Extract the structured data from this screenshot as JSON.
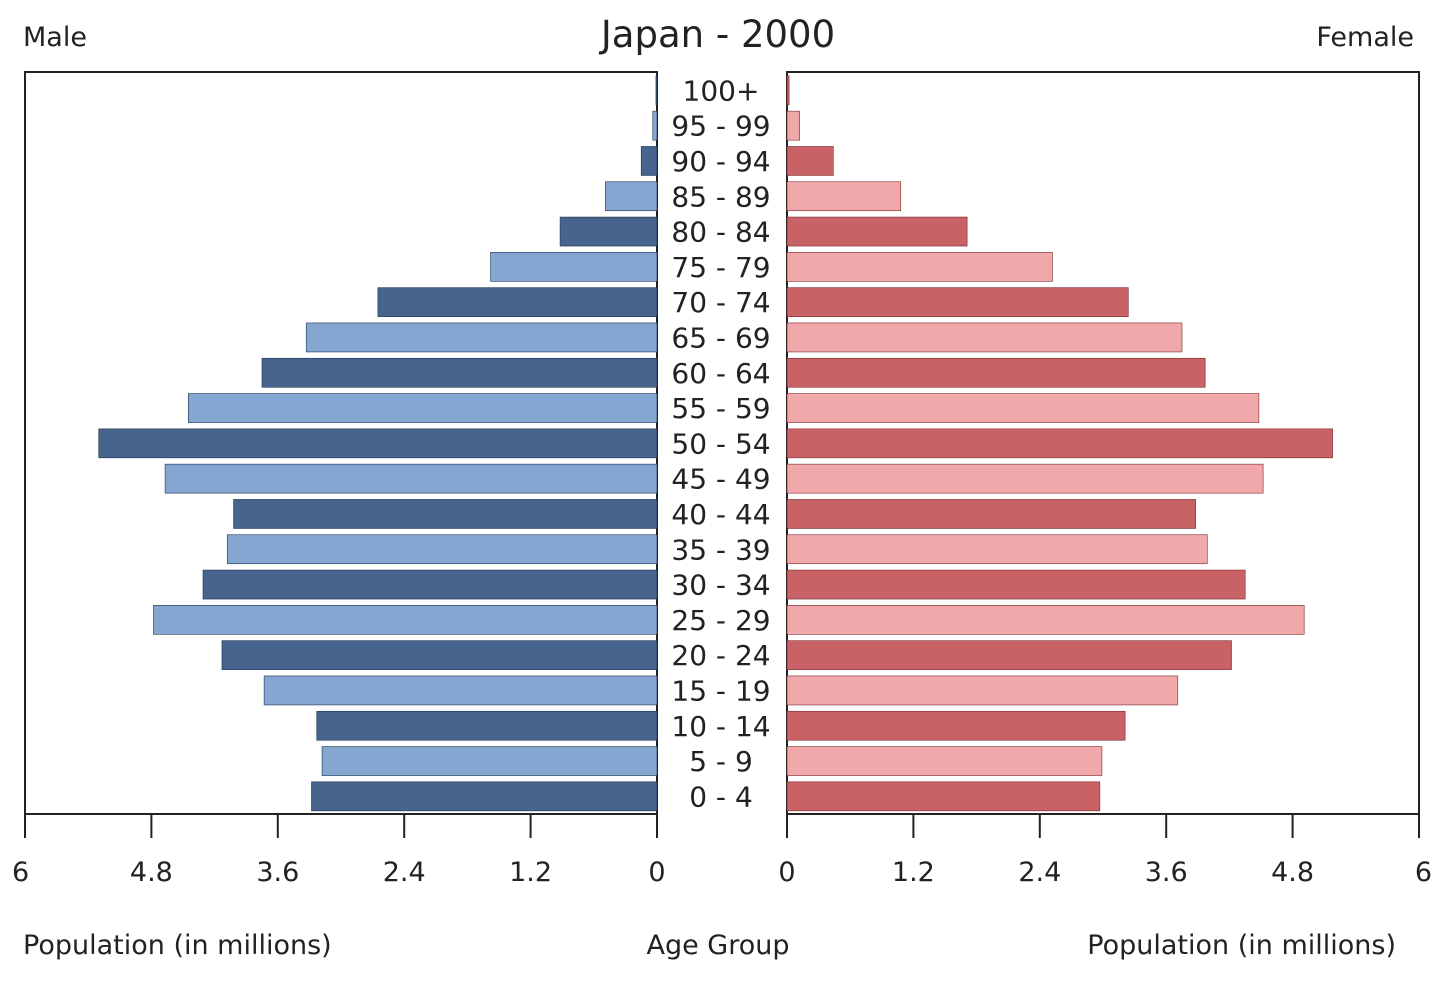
{
  "chart_data": {
    "type": "bar",
    "subtype": "population-pyramid",
    "title": "Japan - 2000",
    "left_label": "Male",
    "right_label": "Female",
    "center_axis_label": "Age Group",
    "left_axis_label": "Population (in millions)",
    "right_axis_label": "Population (in millions)",
    "xlim": [
      0,
      6
    ],
    "xticks": [
      "0",
      "1.2",
      "2.4",
      "3.6",
      "4.8",
      "6"
    ],
    "categories": [
      "0 - 4",
      "5 - 9",
      "10 - 14",
      "15 - 19",
      "20 - 24",
      "25 - 29",
      "30 - 34",
      "35 - 39",
      "40 - 44",
      "45 - 49",
      "50 - 54",
      "55 - 59",
      "60 - 64",
      "65 - 69",
      "70 - 74",
      "75 - 79",
      "80 - 84",
      "85 - 89",
      "90 - 94",
      "95 - 99",
      "100+"
    ],
    "series": [
      {
        "name": "Male",
        "colors": [
          "#46648e",
          "#84a6d0"
        ],
        "values": [
          3.28,
          3.18,
          3.23,
          3.73,
          4.13,
          4.78,
          4.31,
          4.08,
          4.02,
          4.67,
          5.3,
          4.45,
          3.75,
          3.33,
          2.65,
          1.58,
          0.92,
          0.49,
          0.15,
          0.04,
          0.01
        ]
      },
      {
        "name": "Female",
        "colors": [
          "#c96266",
          "#f0a8aa"
        ],
        "values": [
          2.97,
          2.99,
          3.21,
          3.71,
          4.22,
          4.91,
          4.35,
          3.99,
          3.88,
          4.52,
          5.18,
          4.48,
          3.97,
          3.75,
          3.24,
          2.52,
          1.71,
          1.08,
          0.44,
          0.12,
          0.02
        ]
      }
    ],
    "grid": false,
    "legend": "none"
  }
}
